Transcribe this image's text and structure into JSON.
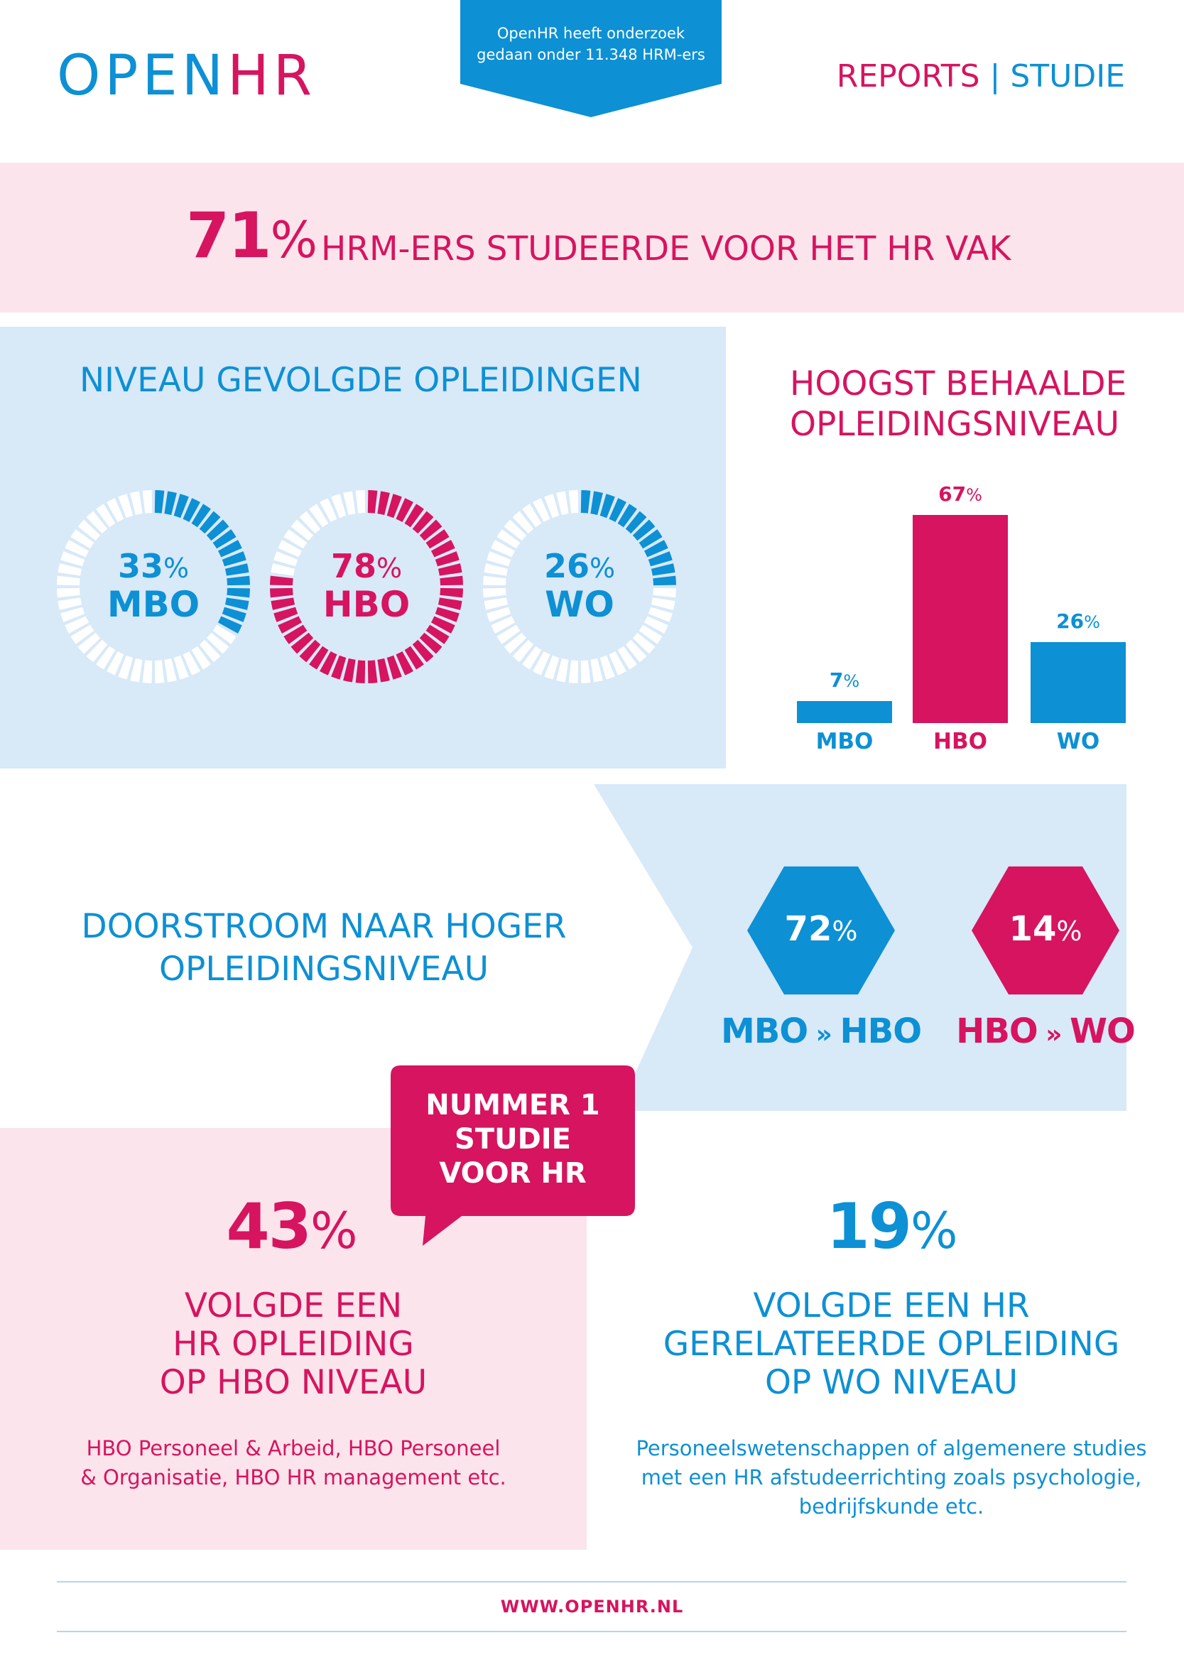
{
  "header": {
    "logo_part1": "OPEN",
    "logo_part2": "HR",
    "flag_line1": "OpenHR heeft onderzoek",
    "flag_line2": "gedaan onder 11.348 HRM-ers",
    "tag_reports": "REPORTS",
    "tag_sep": "|",
    "tag_studie": "STUDIE"
  },
  "banner": {
    "pct_value": "71",
    "pct_symbol": "%",
    "text": "HRM-ERS STUDEERDE VOOR HET HR VAK"
  },
  "niveau": {
    "title": "NIVEAU GEVOLGDE OPLEIDINGEN",
    "donuts": [
      {
        "value": "33",
        "symbol": "%",
        "label": "MBO",
        "fraction": 0.33,
        "color": "#0d90d4"
      },
      {
        "value": "78",
        "symbol": "%",
        "label": "HBO",
        "fraction": 0.78,
        "color": "#d6145f"
      },
      {
        "value": "26",
        "symbol": "%",
        "label": "WO",
        "fraction": 0.26,
        "color": "#0d90d4"
      }
    ]
  },
  "chart_data": {
    "type": "bar",
    "title": "HOOGST BEHAALDE OPLEIDINGSNIVEAU",
    "title_line1": "HOOGST BEHAALDE",
    "title_line2": "OPLEIDINGSNIVEAU",
    "categories": [
      "MBO",
      "HBO",
      "WO"
    ],
    "values": [
      7,
      67,
      26
    ],
    "value_labels": [
      "7",
      "67",
      "26"
    ],
    "unit": "%",
    "colors": [
      "#0d90d4",
      "#d6145f",
      "#0d90d4"
    ],
    "ylim": [
      0,
      67
    ],
    "grid": false
  },
  "doorstroom": {
    "title_line1": "DOORSTROOM NAAR HOGER",
    "title_line2": "OPLEIDINGSNIVEAU",
    "items": [
      {
        "value": "72",
        "symbol": "%",
        "from": "MBO",
        "arrow": "»",
        "to": "HBO",
        "color": "#0d90d4"
      },
      {
        "value": "14",
        "symbol": "%",
        "from": "HBO",
        "arrow": "»",
        "to": "WO",
        "color": "#d6145f"
      }
    ]
  },
  "hbo_block": {
    "badge_line1": "NUMMER 1",
    "badge_line2": "STUDIE",
    "badge_line3": "VOOR HR",
    "pct_value": "43",
    "pct_symbol": "%",
    "caption_line1": "VOLGDE EEN",
    "caption_line2": "HR OPLEIDING",
    "caption_line3": "OP HBO NIVEAU",
    "detail_line1": "HBO Personeel & Arbeid, HBO Personeel",
    "detail_line2": "& Organisatie, HBO HR management etc."
  },
  "wo_block": {
    "pct_value": "19",
    "pct_symbol": "%",
    "caption_line1": "VOLGDE EEN HR",
    "caption_line2": "GERELATEERDE OPLEIDING",
    "caption_line3": "OP WO NIVEAU",
    "detail_line1": "Personeelswetenschappen of algemenere studies",
    "detail_line2": "met een HR afstudeerrichting zoals psychologie,",
    "detail_line3": "bedrijfskunde etc."
  },
  "footer": {
    "url": "WWW.OPENHR.NL"
  }
}
